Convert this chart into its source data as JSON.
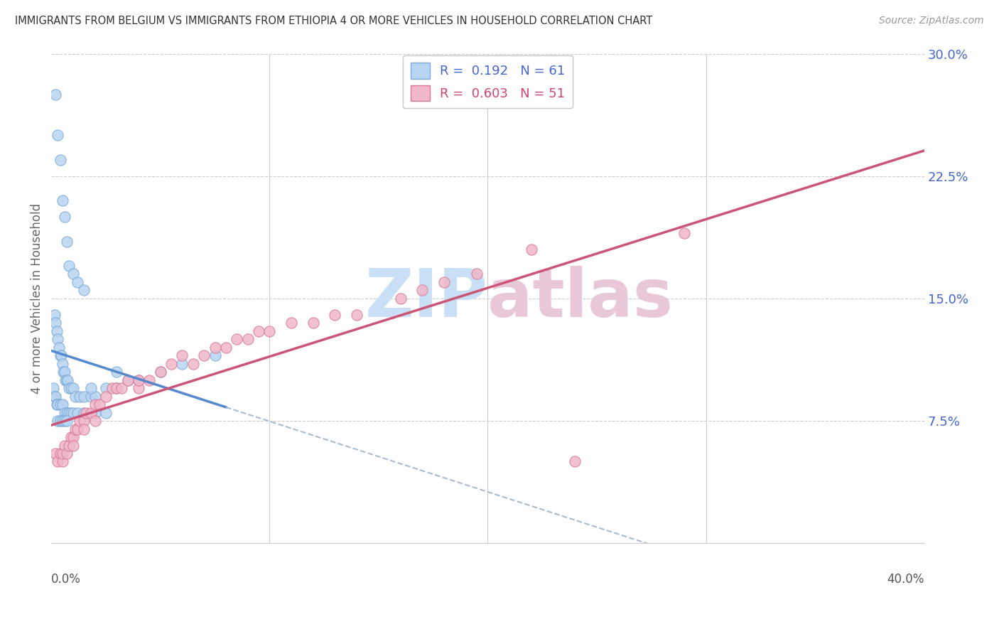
{
  "title": "IMMIGRANTS FROM BELGIUM VS IMMIGRANTS FROM ETHIOPIA 4 OR MORE VEHICLES IN HOUSEHOLD CORRELATION CHART",
  "source": "Source: ZipAtlas.com",
  "ylabel_label": "4 or more Vehicles in Household",
  "xlim": [
    0.0,
    40.0
  ],
  "ylim": [
    0.0,
    30.0
  ],
  "legend_belgium": "R =  0.192   N = 61",
  "legend_ethiopia": "R =  0.603   N = 51",
  "color_belgium_fill": "#b8d4f0",
  "color_belgium_edge": "#7aaad8",
  "color_ethiopia_fill": "#f0b8c8",
  "color_ethiopia_edge": "#d87898",
  "color_belgium_line": "#5588cc",
  "color_ethiopia_line": "#cc5577",
  "color_grid": "#cccccc",
  "watermark_color": "#c8dff5",
  "watermark_color2": "#e8c8d8",
  "belgium_x": [
    0.2,
    0.3,
    0.4,
    0.5,
    0.6,
    0.7,
    0.8,
    1.0,
    1.2,
    1.5,
    0.15,
    0.2,
    0.25,
    0.3,
    0.35,
    0.4,
    0.45,
    0.5,
    0.55,
    0.6,
    0.65,
    0.7,
    0.75,
    0.8,
    0.9,
    1.0,
    1.1,
    1.3,
    1.5,
    1.8,
    2.0,
    2.5,
    3.0,
    3.5,
    0.1,
    0.15,
    0.2,
    0.25,
    0.3,
    0.4,
    0.5,
    0.6,
    0.7,
    0.8,
    0.9,
    1.0,
    1.2,
    1.5,
    2.0,
    2.5,
    0.3,
    0.4,
    0.5,
    0.6,
    0.7,
    4.0,
    5.0,
    6.0,
    7.5,
    1.8,
    3.0
  ],
  "belgium_y": [
    27.5,
    25.0,
    23.5,
    21.0,
    20.0,
    18.5,
    17.0,
    16.5,
    16.0,
    15.5,
    14.0,
    13.5,
    13.0,
    12.5,
    12.0,
    11.5,
    11.5,
    11.0,
    10.5,
    10.5,
    10.0,
    10.0,
    10.0,
    9.5,
    9.5,
    9.5,
    9.0,
    9.0,
    9.0,
    9.0,
    9.0,
    9.5,
    9.5,
    10.0,
    9.5,
    9.0,
    9.0,
    8.5,
    8.5,
    8.5,
    8.5,
    8.0,
    8.0,
    8.0,
    8.0,
    8.0,
    8.0,
    8.0,
    8.0,
    8.0,
    7.5,
    7.5,
    7.5,
    7.5,
    7.5,
    10.0,
    10.5,
    11.0,
    11.5,
    9.5,
    10.5
  ],
  "ethiopia_x": [
    0.2,
    0.3,
    0.4,
    0.5,
    0.5,
    0.6,
    0.7,
    0.8,
    0.9,
    1.0,
    1.0,
    1.1,
    1.2,
    1.3,
    1.5,
    1.5,
    1.6,
    1.8,
    2.0,
    2.0,
    2.2,
    2.5,
    2.8,
    3.0,
    3.2,
    3.5,
    4.0,
    4.0,
    4.5,
    5.0,
    5.5,
    6.0,
    6.5,
    7.0,
    7.5,
    8.0,
    8.5,
    9.0,
    9.5,
    10.0,
    11.0,
    12.0,
    13.0,
    14.0,
    16.0,
    17.0,
    18.0,
    19.5,
    22.0,
    29.0,
    24.0
  ],
  "ethiopia_y": [
    5.5,
    5.0,
    5.5,
    5.0,
    5.5,
    6.0,
    5.5,
    6.0,
    6.5,
    6.5,
    6.0,
    7.0,
    7.0,
    7.5,
    7.5,
    7.0,
    8.0,
    8.0,
    7.5,
    8.5,
    8.5,
    9.0,
    9.5,
    9.5,
    9.5,
    10.0,
    9.5,
    10.0,
    10.0,
    10.5,
    11.0,
    11.5,
    11.0,
    11.5,
    12.0,
    12.0,
    12.5,
    12.5,
    13.0,
    13.0,
    13.5,
    13.5,
    14.0,
    14.0,
    15.0,
    15.5,
    16.0,
    16.5,
    18.0,
    19.0,
    5.0
  ]
}
